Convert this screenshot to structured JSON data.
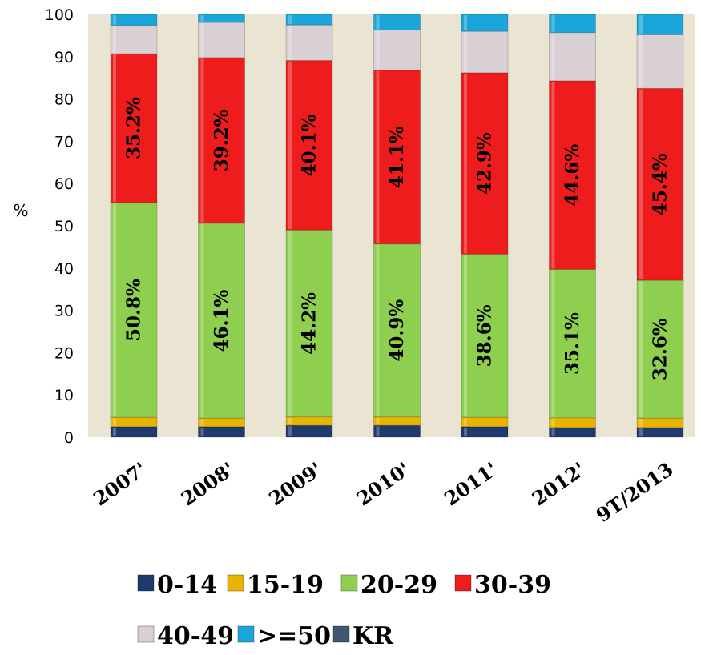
{
  "chart_data": {
    "type": "bar",
    "stacked": true,
    "ylabel": "%",
    "ylim": [
      0,
      100
    ],
    "yticks": [
      0,
      10,
      20,
      30,
      40,
      50,
      60,
      70,
      80,
      90,
      100
    ],
    "categories": [
      "2007'",
      "2008'",
      "2009'",
      "2010'",
      "2011'",
      "2012'",
      "9T/2013"
    ],
    "series": [
      {
        "name": "0-14",
        "color": "#1f3a6e",
        "values": [
          2.5,
          2.5,
          2.8,
          2.8,
          2.5,
          2.3,
          2.3
        ]
      },
      {
        "name": "15-19",
        "color": "#e8b400",
        "values": [
          2.2,
          2.0,
          2.0,
          2.0,
          2.2,
          2.3,
          2.2
        ]
      },
      {
        "name": "20-29",
        "color": "#8fcf4f",
        "values": [
          50.8,
          46.1,
          44.2,
          40.9,
          38.6,
          35.1,
          32.6
        ]
      },
      {
        "name": "30-39",
        "color": "#ee1c1c",
        "values": [
          35.2,
          39.2,
          40.1,
          41.1,
          42.9,
          44.6,
          45.4
        ]
      },
      {
        "name": "40-49",
        "color": "#d9d0d3",
        "values": [
          6.7,
          8.3,
          8.4,
          9.5,
          9.8,
          11.4,
          12.7
        ]
      },
      {
        "name": ">=50",
        "color": "#1aa6db",
        "values": [
          2.6,
          1.9,
          2.5,
          3.7,
          4.0,
          4.3,
          4.8
        ]
      },
      {
        "name": "KR",
        "color": "#3f5872",
        "values": [
          0,
          0,
          0,
          0,
          0,
          0,
          0
        ]
      }
    ],
    "data_labels": {
      "20-29": [
        "50.8%",
        "46.1%",
        "44.2%",
        "40.9%",
        "38.6%",
        "35.1%",
        "32.6%"
      ],
      "30-39": [
        "35.2%",
        "39.2%",
        "40.1%",
        "41.1%",
        "42.9%",
        "44.6%",
        "45.4%"
      ]
    },
    "grid": false,
    "legend": "bottom",
    "background": "#eae4d3"
  }
}
